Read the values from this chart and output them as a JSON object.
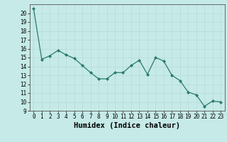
{
  "x": [
    0,
    1,
    2,
    3,
    4,
    5,
    6,
    7,
    8,
    9,
    10,
    11,
    12,
    13,
    14,
    15,
    16,
    17,
    18,
    19,
    20,
    21,
    22,
    23
  ],
  "y": [
    20.5,
    14.8,
    15.2,
    15.8,
    15.3,
    14.9,
    14.1,
    13.3,
    12.6,
    12.6,
    13.3,
    13.3,
    14.1,
    14.7,
    13.1,
    15.0,
    14.6,
    13.0,
    12.4,
    11.1,
    10.8,
    9.5,
    10.1,
    10.0
  ],
  "xlabel": "Humidex (Indice chaleur)",
  "ylim": [
    9,
    21
  ],
  "xlim": [
    -0.5,
    23.5
  ],
  "yticks": [
    9,
    10,
    11,
    12,
    13,
    14,
    15,
    16,
    17,
    18,
    19,
    20
  ],
  "xticks": [
    0,
    1,
    2,
    3,
    4,
    5,
    6,
    7,
    8,
    9,
    10,
    11,
    12,
    13,
    14,
    15,
    16,
    17,
    18,
    19,
    20,
    21,
    22,
    23
  ],
  "line_color": "#2a7a6e",
  "marker_color": "#2a7a6e",
  "bg_color": "#c5eae7",
  "grid_major_color": "#b8dbd8",
  "grid_minor_color": "#cce8e5",
  "tick_fontsize": 5.5,
  "xlabel_fontsize": 7.5
}
